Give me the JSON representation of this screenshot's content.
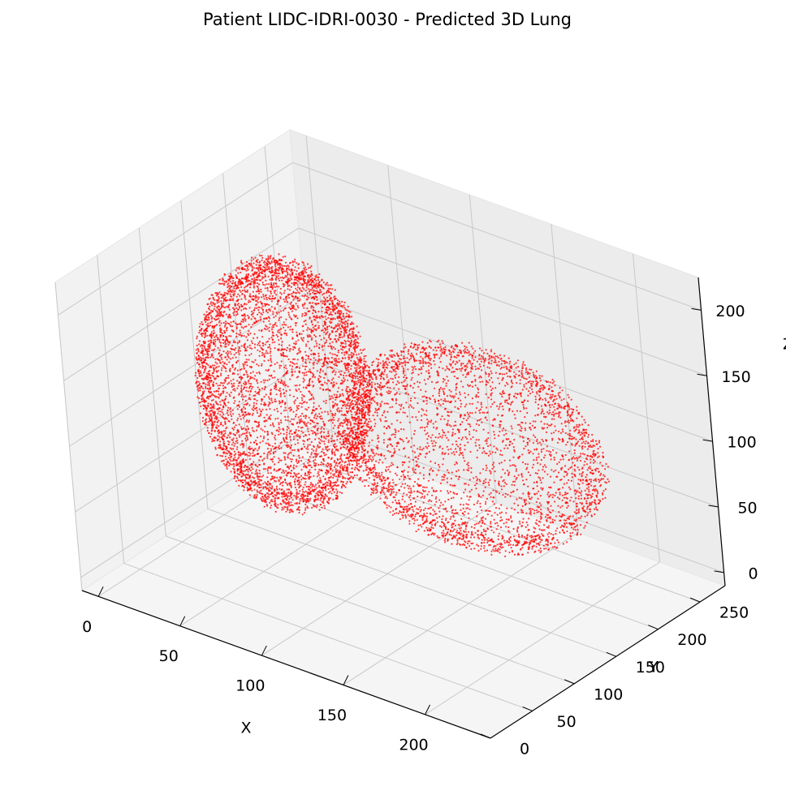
{
  "chart_data": {
    "type": "scatter",
    "title": "Patient LIDC-IDRI-0030 - Predicted 3D Lung",
    "xlabel": "X",
    "ylabel": "Y",
    "zlabel": "Z",
    "x_ticks": [
      "0",
      "50",
      "100",
      "150",
      "200"
    ],
    "y_ticks": [
      "0",
      "50",
      "100",
      "150",
      "200",
      "250"
    ],
    "z_ticks": [
      "0",
      "50",
      "100",
      "150",
      "200"
    ],
    "xlim": [
      -10,
      240
    ],
    "ylim": [
      0,
      280
    ],
    "zlim": [
      -10,
      225
    ],
    "marker_color": "#ff0000",
    "marker": "point cloud (lung surface voxels)",
    "grid": true,
    "series": [
      {
        "lobe_centers": [
          {
            "x": 45,
            "y": 150,
            "z": 110
          },
          {
            "x": 150,
            "y": 170,
            "z": 100
          }
        ],
        "approx_extent": {
          "x": [
            10,
            230
          ],
          "y": [
            100,
            265
          ],
          "z": [
            0,
            210
          ]
        }
      }
    ]
  }
}
